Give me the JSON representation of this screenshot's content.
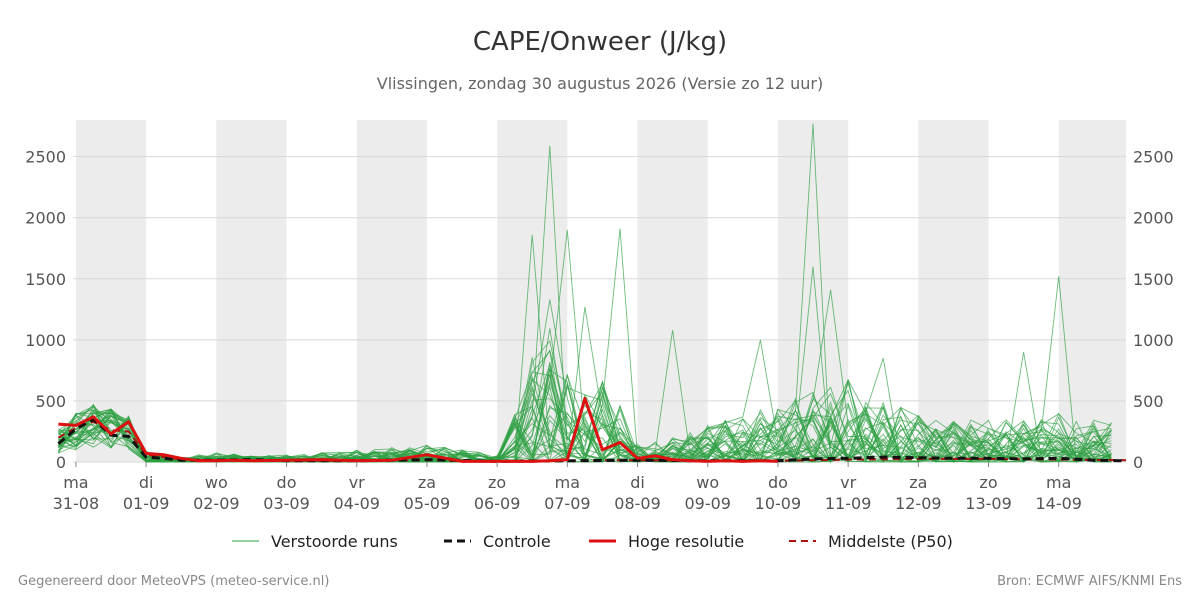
{
  "chart_data": {
    "type": "line",
    "title": "CAPE/Onweer (J/kg)",
    "subtitle": "Vlissingen, zondag 30 augustus 2026 (Versie zo 12 uur)",
    "ylim": [
      0,
      2800
    ],
    "yticks": [
      0,
      500,
      1000,
      1500,
      2000,
      2500
    ],
    "xlim": [
      -1,
      359
    ],
    "day_labels": [
      {
        "day": "ma",
        "date": "31-08"
      },
      {
        "day": "di",
        "date": "01-09"
      },
      {
        "day": "wo",
        "date": "02-09"
      },
      {
        "day": "do",
        "date": "03-09"
      },
      {
        "day": "vr",
        "date": "04-09"
      },
      {
        "day": "za",
        "date": "05-09"
      },
      {
        "day": "zo",
        "date": "06-09"
      },
      {
        "day": "ma",
        "date": "07-09"
      },
      {
        "day": "di",
        "date": "08-09"
      },
      {
        "day": "wo",
        "date": "09-09"
      },
      {
        "day": "do",
        "date": "10-09"
      },
      {
        "day": "vr",
        "date": "11-09"
      },
      {
        "day": "za",
        "date": "12-09"
      },
      {
        "day": "zo",
        "date": "13-09"
      },
      {
        "day": "ma",
        "date": "14-09"
      }
    ],
    "x_unit_note": "hours after 31-08 00:00",
    "night_bands_note": "shaded bands mark alternate days",
    "grid": true,
    "legend_position": "bottom",
    "legend": [
      {
        "key": "members",
        "label": "Verstoorde runs"
      },
      {
        "key": "control",
        "label": "Controle"
      },
      {
        "key": "hires",
        "label": "Hoge resolutie"
      },
      {
        "key": "p50",
        "label": "Middelste (P50)"
      }
    ],
    "colors": {
      "members": "#2ea043",
      "control": "#111111",
      "hires": "#dd1111",
      "p50": "#aa1111",
      "band": "#ececec",
      "grid": "#d8d8d8"
    },
    "hires": {
      "x": [
        -6,
        0,
        6,
        12,
        18,
        24,
        30,
        36,
        42,
        48,
        54,
        60,
        72,
        84,
        96,
        108,
        120,
        132,
        144,
        156,
        162,
        168,
        174,
        180,
        186,
        192,
        198,
        204,
        210,
        216,
        222,
        228,
        234,
        240
      ],
      "y": [
        310,
        300,
        370,
        230,
        330,
        70,
        60,
        30,
        10,
        10,
        15,
        10,
        15,
        20,
        10,
        15,
        60,
        5,
        5,
        5,
        10,
        20,
        520,
        100,
        160,
        30,
        50,
        20,
        10,
        5,
        10,
        5,
        10,
        5
      ]
    },
    "control": {
      "x": [
        -6,
        0,
        6,
        12,
        18,
        24,
        30,
        36,
        48,
        60,
        72,
        96,
        120,
        144,
        168,
        192,
        216,
        240,
        252,
        264,
        276,
        288,
        300,
        312,
        324,
        336,
        348,
        359
      ],
      "y": [
        150,
        270,
        350,
        220,
        210,
        40,
        30,
        15,
        15,
        20,
        10,
        10,
        20,
        5,
        10,
        15,
        10,
        10,
        25,
        30,
        40,
        35,
        30,
        30,
        25,
        30,
        15,
        10
      ]
    },
    "p50": {
      "x": [
        -6,
        0,
        6,
        12,
        18,
        24,
        36,
        48,
        72,
        96,
        120,
        144,
        168,
        180,
        192,
        216,
        240,
        264,
        288,
        312,
        336,
        359
      ],
      "y": [
        200,
        280,
        330,
        260,
        250,
        60,
        20,
        15,
        10,
        10,
        15,
        5,
        10,
        15,
        15,
        10,
        10,
        20,
        25,
        25,
        20,
        15
      ]
    }
  },
  "footer": {
    "left": "Gegenereerd door MeteoVPS (meteo-service.nl)",
    "right": "Bron: ECMWF AIFS/KNMI Ens"
  }
}
